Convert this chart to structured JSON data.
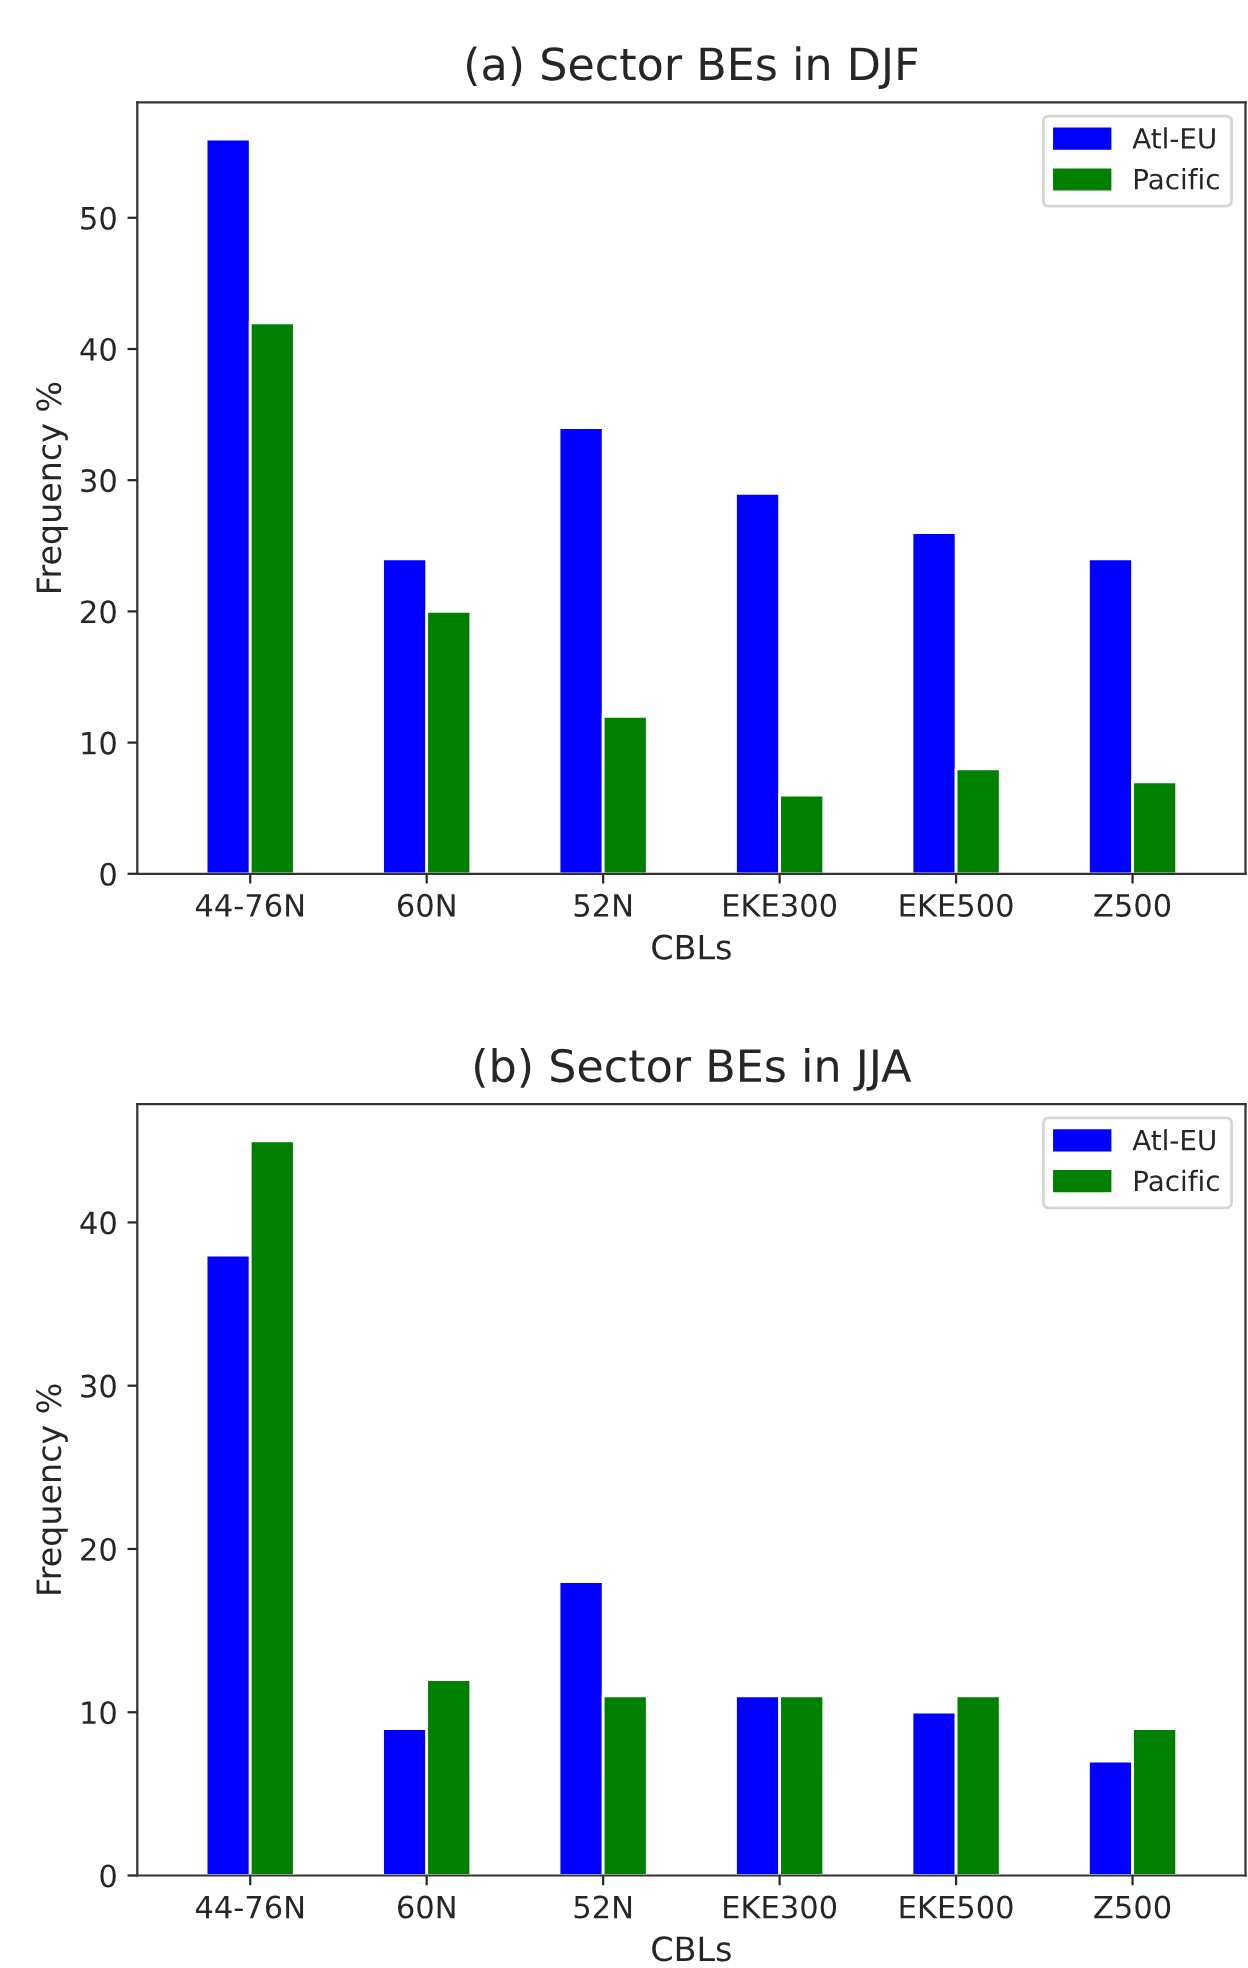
{
  "chart_data": [
    {
      "type": "bar",
      "title": "(a) Sector BEs in DJF",
      "xlabel": "CBLs",
      "ylabel": "Frequency %",
      "categories": [
        "44-76N",
        "60N",
        "52N",
        "EKE300",
        "EKE500",
        "Z500"
      ],
      "series": [
        {
          "name": "Atl-EU",
          "color": "#0000ff",
          "values": [
            56,
            24,
            34,
            29,
            26,
            24
          ]
        },
        {
          "name": "Pacific",
          "color": "#008000",
          "values": [
            42,
            20,
            12,
            6,
            8,
            7
          ]
        }
      ],
      "ylim": [
        0,
        58.8
      ],
      "yticks": [
        0,
        10,
        20,
        30,
        40,
        50
      ],
      "grid": false,
      "legend": "top right"
    },
    {
      "type": "bar",
      "title": "(b) Sector BEs in JJA",
      "xlabel": "CBLs",
      "ylabel": "Frequency %",
      "categories": [
        "44-76N",
        "60N",
        "52N",
        "EKE300",
        "EKE500",
        "Z500"
      ],
      "series": [
        {
          "name": "Atl-EU",
          "color": "#0000ff",
          "values": [
            38,
            9,
            18,
            11,
            10,
            7
          ]
        },
        {
          "name": "Pacific",
          "color": "#008000",
          "values": [
            45,
            12,
            11,
            11,
            11,
            9
          ]
        }
      ],
      "ylim": [
        0,
        47.25
      ],
      "yticks": [
        0,
        10,
        20,
        30,
        40
      ],
      "grid": false,
      "legend": "top right"
    }
  ]
}
